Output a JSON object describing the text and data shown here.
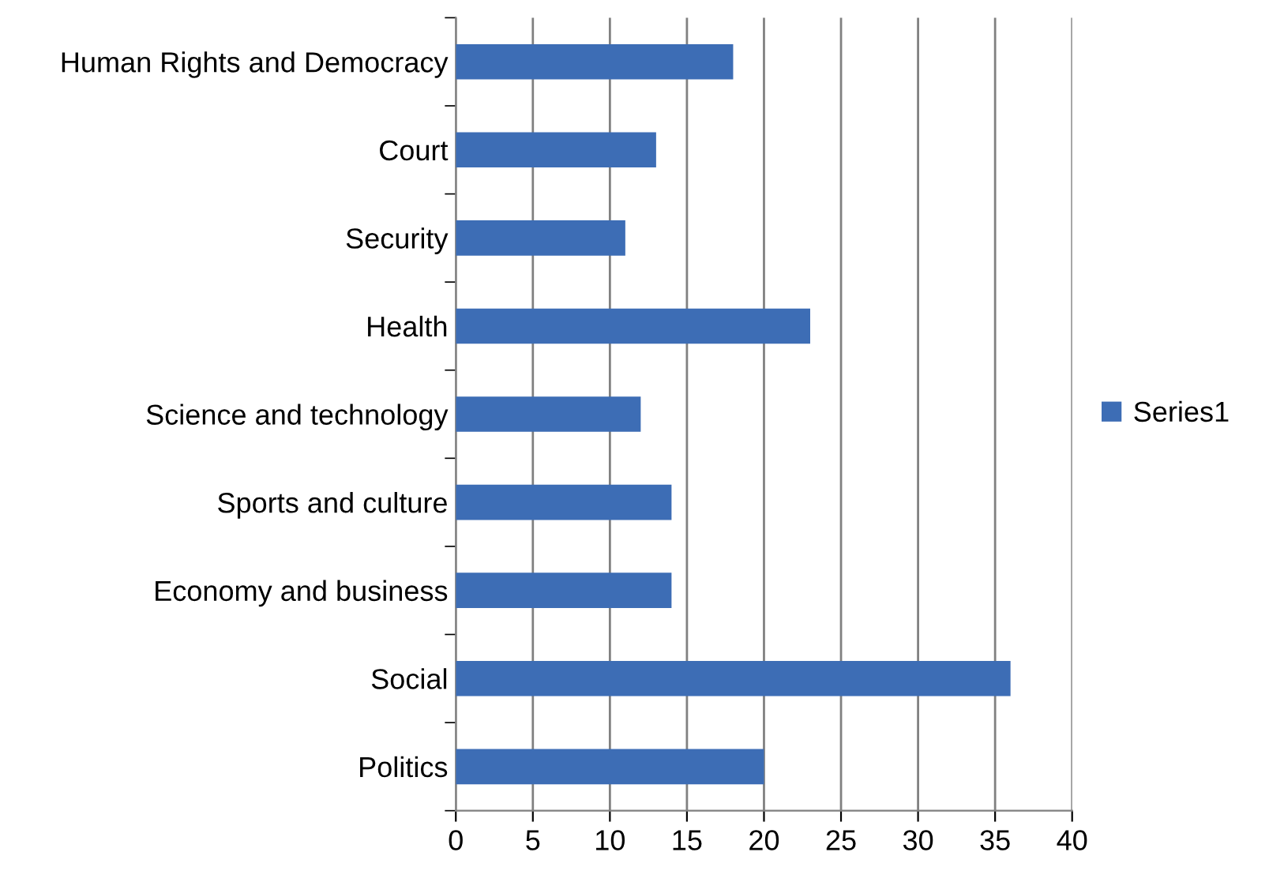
{
  "chart_data": {
    "type": "bar",
    "orientation": "horizontal",
    "categories": [
      "Human Rights and Democracy",
      "Court",
      "Security",
      "Health",
      "Science and technology",
      "Sports and culture",
      "Economy and business",
      "Social",
      "Politics"
    ],
    "series": [
      {
        "name": "Series1",
        "color": "#3d6db5",
        "values": [
          18,
          13,
          11,
          23,
          12,
          14,
          14,
          36,
          20
        ]
      }
    ],
    "xlim": [
      0,
      40
    ],
    "xticks": [
      0,
      5,
      10,
      15,
      20,
      25,
      30,
      35,
      40
    ],
    "grid": "x",
    "legend": "right"
  }
}
